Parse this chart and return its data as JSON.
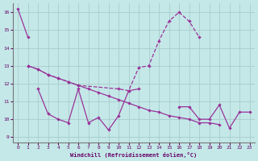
{
  "xlabel": "Windchill (Refroidissement éolien,°C)",
  "xlim": [
    -0.5,
    23.5
  ],
  "ylim": [
    8.7,
    16.5
  ],
  "yticks": [
    9,
    10,
    11,
    12,
    13,
    14,
    15,
    16
  ],
  "xticks": [
    0,
    1,
    2,
    3,
    4,
    5,
    6,
    7,
    8,
    9,
    10,
    11,
    12,
    13,
    14,
    15,
    16,
    17,
    18,
    19,
    20,
    21,
    22,
    23
  ],
  "background_color": "#c4e8e8",
  "line_color": "#993399",
  "grid_color": "#a8cccc",
  "lines": [
    {
      "x": [
        0,
        1
      ],
      "y": [
        16.2,
        14.6
      ],
      "style": "-",
      "marker": true
    },
    {
      "x": [
        1,
        2,
        3,
        4,
        5,
        6,
        10,
        11,
        12,
        13,
        14,
        15,
        16,
        17,
        18
      ],
      "y": [
        13.0,
        12.8,
        12.5,
        12.3,
        12.1,
        11.9,
        11.7,
        11.6,
        12.9,
        13.0,
        14.4,
        15.5,
        16.0,
        15.5,
        14.6
      ],
      "style": "--",
      "marker": true
    },
    {
      "x": [
        1,
        2,
        3,
        4,
        5,
        6,
        7,
        8,
        9,
        10,
        11,
        12,
        13,
        14,
        15,
        16,
        17,
        18,
        19,
        20
      ],
      "y": [
        13.0,
        12.8,
        12.5,
        12.3,
        12.1,
        11.9,
        11.7,
        11.5,
        11.3,
        11.1,
        10.9,
        10.7,
        10.5,
        10.4,
        10.2,
        10.1,
        10.0,
        9.8,
        9.8,
        9.7
      ],
      "style": "-",
      "marker": true
    },
    {
      "x": [
        2,
        3,
        4,
        5,
        6,
        7,
        8,
        9,
        10,
        11,
        12
      ],
      "y": [
        11.7,
        10.3,
        10.0,
        9.8,
        11.7,
        9.8,
        10.1,
        9.4,
        10.2,
        11.6,
        11.7
      ],
      "style": "-",
      "marker": true
    },
    {
      "x": [
        16,
        17,
        18,
        19,
        20,
        21,
        22,
        23
      ],
      "y": [
        10.7,
        10.7,
        10.0,
        10.0,
        10.8,
        9.5,
        10.4,
        10.4
      ],
      "style": "-",
      "marker": true
    }
  ]
}
